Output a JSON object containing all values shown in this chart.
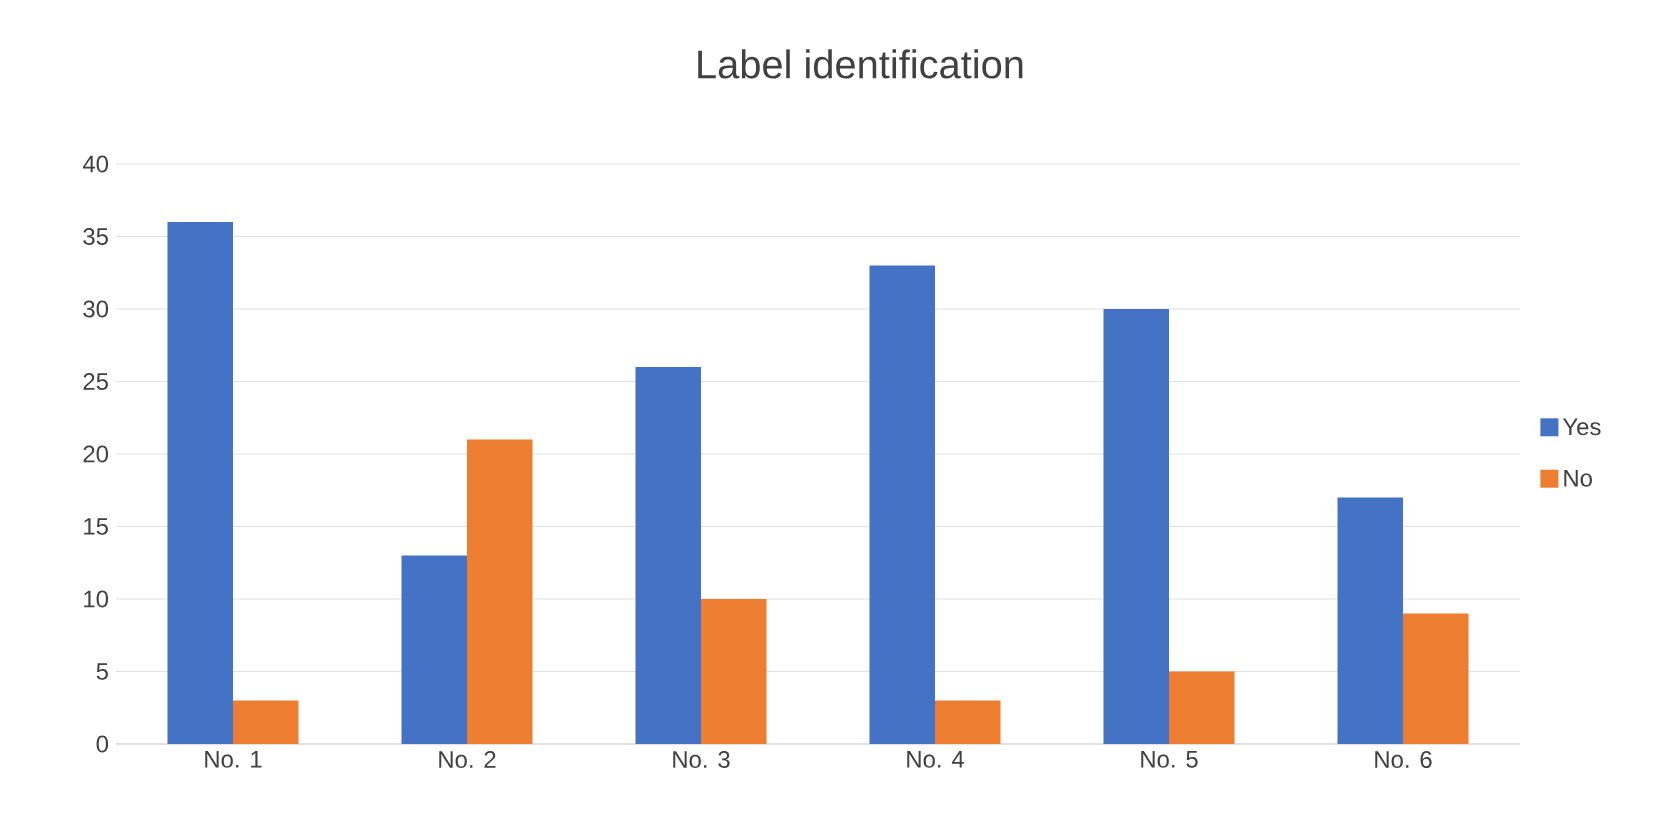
{
  "chart_data": {
    "type": "bar",
    "title": "Label identification",
    "categories": [
      "No. 1",
      "No. 2",
      "No. 3",
      "No. 4",
      "No. 5",
      "No. 6"
    ],
    "series": [
      {
        "name": "Yes",
        "color": "#4472c4",
        "values": [
          36,
          13,
          26,
          33,
          30,
          17
        ]
      },
      {
        "name": "No",
        "color": "#ed7d31",
        "values": [
          3,
          21,
          10,
          3,
          5,
          9
        ]
      }
    ],
    "ylim": [
      0,
      40
    ],
    "yticks": [
      0,
      5,
      10,
      15,
      20,
      25,
      30,
      35,
      40
    ],
    "grid": "y",
    "legend": "right"
  }
}
